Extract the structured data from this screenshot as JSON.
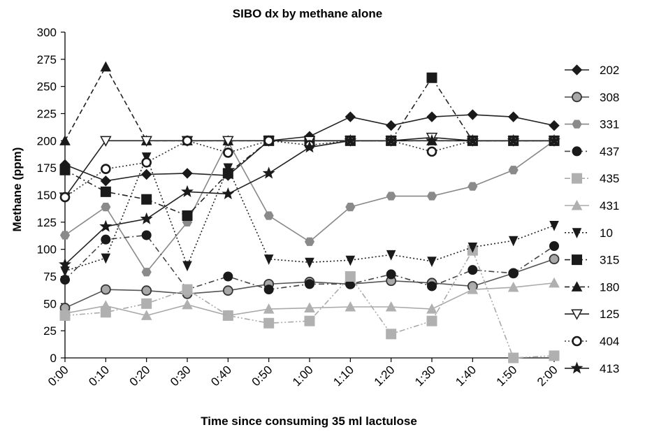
{
  "chart_data": {
    "type": "line",
    "title": "SIBO dx by methane alone",
    "xlabel": "Time since consuming 35 ml lactulose",
    "ylabel": "Methane (ppm)",
    "categories": [
      "0:00",
      "0:10",
      "0:20",
      "0:30",
      "0:40",
      "0:50",
      "1:00",
      "1:10",
      "1:20",
      "1:30",
      "1:40",
      "1:50",
      "2:00"
    ],
    "ylim": [
      0,
      300
    ],
    "yticks": [
      0,
      25,
      50,
      75,
      100,
      125,
      150,
      175,
      200,
      225,
      250,
      275,
      300
    ],
    "grid": false,
    "legend_position": "right",
    "series": [
      {
        "name": "202",
        "color": "#222222",
        "marker": "diamond",
        "dash": "solid",
        "values": [
          178,
          163,
          169,
          170,
          168,
          200,
          204,
          222,
          214,
          222,
          224,
          222,
          214
        ]
      },
      {
        "name": "308",
        "color": "#555555",
        "marker": "circle-gray",
        "dash": "solid",
        "values": [
          46,
          63,
          62,
          59,
          62,
          68,
          70,
          68,
          71,
          69,
          66,
          78,
          91
        ]
      },
      {
        "name": "331",
        "color": "#888888",
        "marker": "hexagon",
        "dash": "solid",
        "values": [
          113,
          139,
          79,
          125,
          199,
          131,
          107,
          139,
          149,
          149,
          158,
          173,
          200
        ]
      },
      {
        "name": "437",
        "color": "#444444",
        "marker": "circle-black",
        "dash": "dashdot",
        "values": [
          72,
          109,
          113,
          63,
          75,
          63,
          68,
          68,
          77,
          66,
          81,
          78,
          103
        ]
      },
      {
        "name": "435",
        "color": "#aaaaaa",
        "marker": "square-gray",
        "dash": "dashdotdot",
        "values": [
          39,
          42,
          50,
          63,
          39,
          32,
          34,
          75,
          22,
          34,
          99,
          0,
          2
        ]
      },
      {
        "name": "431",
        "color": "#aaaaaa",
        "marker": "triangle-gray",
        "dash": "solid",
        "values": [
          41,
          48,
          39,
          49,
          39,
          45,
          46,
          47,
          47,
          45,
          63,
          65,
          69
        ]
      },
      {
        "name": "10",
        "color": "#222222",
        "marker": "triangle-down",
        "dash": "dotted",
        "values": [
          80,
          92,
          185,
          85,
          175,
          91,
          88,
          90,
          95,
          89,
          102,
          108,
          122
        ]
      },
      {
        "name": "315",
        "color": "#222222",
        "marker": "square-black",
        "dash": "dashdot",
        "values": [
          173,
          153,
          146,
          131,
          170,
          200,
          200,
          200,
          200,
          258,
          200,
          200,
          200
        ]
      },
      {
        "name": "180",
        "color": "#222222",
        "marker": "triangle-black",
        "dash": "dashed",
        "values": [
          200,
          268,
          200,
          200,
          200,
          200,
          200,
          200,
          200,
          200,
          200,
          200,
          200
        ]
      },
      {
        "name": "125",
        "color": "#222222",
        "marker": "triangle-down-open",
        "dash": "solid",
        "values": [
          148,
          200,
          200,
          200,
          200,
          200,
          200,
          200,
          200,
          203,
          200,
          200,
          200
        ]
      },
      {
        "name": "404",
        "color": "#333333",
        "marker": "circle-open",
        "dash": "dotted",
        "values": [
          148,
          174,
          180,
          200,
          189,
          200,
          196,
          200,
          200,
          190,
          200,
          200,
          200
        ]
      },
      {
        "name": "413",
        "color": "#222222",
        "marker": "star",
        "dash": "solid",
        "values": [
          86,
          121,
          128,
          153,
          151,
          170,
          194,
          200,
          200,
          200,
          200,
          200,
          200
        ]
      }
    ]
  }
}
